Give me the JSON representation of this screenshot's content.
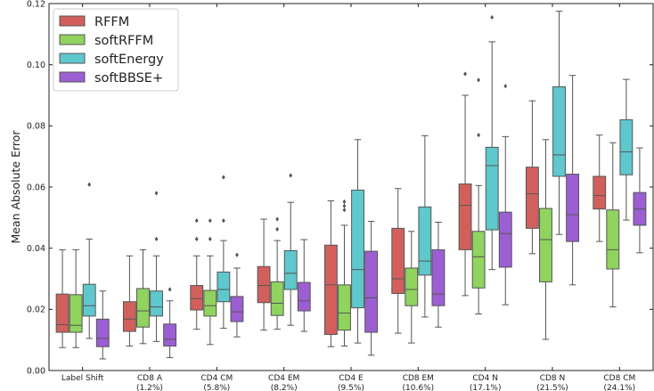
{
  "chart_data": {
    "type": "box",
    "title": "",
    "xlabel": "",
    "ylabel": "Mean Absolute Error",
    "ylim": [
      0,
      0.12
    ],
    "yticks": [
      "0.00",
      "0.02",
      "0.04",
      "0.06",
      "0.08",
      "0.10",
      "0.12"
    ],
    "ytick_values": [
      0,
      0.02,
      0.04,
      0.06,
      0.08,
      0.1,
      0.12
    ],
    "grid": false,
    "legend_position": "top-left",
    "categories": [
      {
        "line1": "Label Shift",
        "line2": ""
      },
      {
        "line1": "CD8 A",
        "line2": "(1.2%)"
      },
      {
        "line1": "CD4 CM",
        "line2": "(5.8%)"
      },
      {
        "line1": "CD4 EM",
        "line2": "(8.2%)"
      },
      {
        "line1": "CD4 E",
        "line2": "(9.5%)"
      },
      {
        "line1": "CD8 EM",
        "line2": "(10.6%)"
      },
      {
        "line1": "CD4 N",
        "line2": "(17.1%)"
      },
      {
        "line1": "CD8 N",
        "line2": "(21.5%)"
      },
      {
        "line1": "CD8 CM",
        "line2": "(24.1%)"
      }
    ],
    "series": [
      {
        "name": "RFFM",
        "color": "#d1605c",
        "boxes": [
          {
            "whislo": 0.0075,
            "q1": 0.0125,
            "med": 0.015,
            "q3": 0.025,
            "whishi": 0.0395,
            "fliers": []
          },
          {
            "whislo": 0.008,
            "q1": 0.0128,
            "med": 0.0168,
            "q3": 0.0225,
            "whishi": 0.0375,
            "fliers": []
          },
          {
            "whislo": 0.0135,
            "q1": 0.0198,
            "med": 0.0235,
            "q3": 0.0278,
            "whishi": 0.0375,
            "fliers": [
              0.043,
              0.049
            ]
          },
          {
            "whislo": 0.0132,
            "q1": 0.0222,
            "med": 0.0278,
            "q3": 0.034,
            "whishi": 0.0495,
            "fliers": []
          },
          {
            "whislo": 0.0078,
            "q1": 0.0118,
            "med": 0.028,
            "q3": 0.041,
            "whishi": 0.0555,
            "fliers": []
          },
          {
            "whislo": 0.0122,
            "q1": 0.0252,
            "med": 0.03,
            "q3": 0.0465,
            "whishi": 0.0595,
            "fliers": []
          },
          {
            "whislo": 0.0245,
            "q1": 0.0395,
            "med": 0.054,
            "q3": 0.061,
            "whishi": 0.09,
            "fliers": [
              0.097
            ]
          },
          {
            "whislo": 0.0382,
            "q1": 0.0465,
            "med": 0.0578,
            "q3": 0.0665,
            "whishi": 0.0882,
            "fliers": []
          },
          {
            "whislo": 0.0422,
            "q1": 0.0528,
            "med": 0.0572,
            "q3": 0.0635,
            "whishi": 0.077,
            "fliers": []
          }
        ]
      },
      {
        "name": "softRFFM",
        "color": "#90d35e",
        "boxes": [
          {
            "whislo": 0.0075,
            "q1": 0.0125,
            "med": 0.0148,
            "q3": 0.0248,
            "whishi": 0.0395,
            "fliers": []
          },
          {
            "whislo": 0.0088,
            "q1": 0.0142,
            "med": 0.0195,
            "q3": 0.0268,
            "whishi": 0.0395,
            "fliers": []
          },
          {
            "whislo": 0.0085,
            "q1": 0.0178,
            "med": 0.0212,
            "q3": 0.0262,
            "whishi": 0.0375,
            "fliers": [
              0.043,
              0.049
            ]
          },
          {
            "whislo": 0.0135,
            "q1": 0.018,
            "med": 0.022,
            "q3": 0.029,
            "whishi": 0.0425,
            "fliers": [
              0.0462,
              0.0495
            ]
          },
          {
            "whislo": 0.008,
            "q1": 0.0132,
            "med": 0.0188,
            "q3": 0.028,
            "whishi": 0.0475,
            "fliers": [
              0.0525,
              0.0538,
              0.0552
            ]
          },
          {
            "whislo": 0.009,
            "q1": 0.0212,
            "med": 0.0265,
            "q3": 0.0335,
            "whishi": 0.0455,
            "fliers": []
          },
          {
            "whislo": 0.0185,
            "q1": 0.027,
            "med": 0.0372,
            "q3": 0.0455,
            "whishi": 0.0605,
            "fliers": [
              0.077,
              0.095
            ]
          },
          {
            "whislo": 0.0102,
            "q1": 0.029,
            "med": 0.0428,
            "q3": 0.053,
            "whishi": 0.0755,
            "fliers": []
          },
          {
            "whislo": 0.0208,
            "q1": 0.0332,
            "med": 0.0395,
            "q3": 0.0525,
            "whishi": 0.0745,
            "fliers": []
          }
        ]
      },
      {
        "name": "softEnergy",
        "color": "#5ec8cd",
        "boxes": [
          {
            "whislo": 0.0105,
            "q1": 0.0178,
            "med": 0.0212,
            "q3": 0.0282,
            "whishi": 0.043,
            "fliers": [
              0.0608
            ]
          },
          {
            "whislo": 0.0095,
            "q1": 0.0178,
            "med": 0.0208,
            "q3": 0.026,
            "whishi": 0.0375,
            "fliers": [
              0.043,
              0.058
            ]
          },
          {
            "whislo": 0.0138,
            "q1": 0.0225,
            "med": 0.0265,
            "q3": 0.0322,
            "whishi": 0.0425,
            "fliers": [
              0.049,
              0.0632
            ]
          },
          {
            "whislo": 0.0148,
            "q1": 0.0265,
            "med": 0.0318,
            "q3": 0.0392,
            "whishi": 0.055,
            "fliers": [
              0.0638
            ]
          },
          {
            "whislo": 0.009,
            "q1": 0.0205,
            "med": 0.033,
            "q3": 0.059,
            "whishi": 0.0755,
            "fliers": []
          },
          {
            "whislo": 0.0175,
            "q1": 0.0312,
            "med": 0.0358,
            "q3": 0.0535,
            "whishi": 0.0768,
            "fliers": []
          },
          {
            "whislo": 0.033,
            "q1": 0.046,
            "med": 0.067,
            "q3": 0.073,
            "whishi": 0.1075,
            "fliers": [
              0.1155
            ]
          },
          {
            "whislo": 0.0445,
            "q1": 0.0635,
            "med": 0.0705,
            "q3": 0.0928,
            "whishi": 0.1175,
            "fliers": []
          },
          {
            "whislo": 0.0492,
            "q1": 0.064,
            "med": 0.0715,
            "q3": 0.082,
            "whishi": 0.0952,
            "fliers": []
          }
        ]
      },
      {
        "name": "softBBSE+",
        "color": "#9b5fd3",
        "boxes": [
          {
            "whislo": 0.0038,
            "q1": 0.0078,
            "med": 0.0105,
            "q3": 0.0168,
            "whishi": 0.026,
            "fliers": []
          },
          {
            "whislo": 0.0042,
            "q1": 0.008,
            "med": 0.0102,
            "q3": 0.0152,
            "whishi": 0.0228,
            "fliers": [
              0.0265
            ]
          },
          {
            "whislo": 0.011,
            "q1": 0.016,
            "med": 0.0192,
            "q3": 0.0242,
            "whishi": 0.0335,
            "fliers": [
              0.0378
            ]
          },
          {
            "whislo": 0.0128,
            "q1": 0.0195,
            "med": 0.0228,
            "q3": 0.0288,
            "whishi": 0.0428,
            "fliers": []
          },
          {
            "whislo": 0.005,
            "q1": 0.0125,
            "med": 0.0238,
            "q3": 0.039,
            "whishi": 0.0488,
            "fliers": []
          },
          {
            "whislo": 0.0142,
            "q1": 0.0212,
            "med": 0.025,
            "q3": 0.0395,
            "whishi": 0.0485,
            "fliers": []
          },
          {
            "whislo": 0.0215,
            "q1": 0.0338,
            "med": 0.0448,
            "q3": 0.0518,
            "whishi": 0.0765,
            "fliers": [
              0.093
            ]
          },
          {
            "whislo": 0.028,
            "q1": 0.0422,
            "med": 0.051,
            "q3": 0.0642,
            "whishi": 0.0965,
            "fliers": []
          },
          {
            "whislo": 0.0385,
            "q1": 0.0475,
            "med": 0.0528,
            "q3": 0.0582,
            "whishi": 0.0728,
            "fliers": []
          }
        ]
      }
    ]
  }
}
